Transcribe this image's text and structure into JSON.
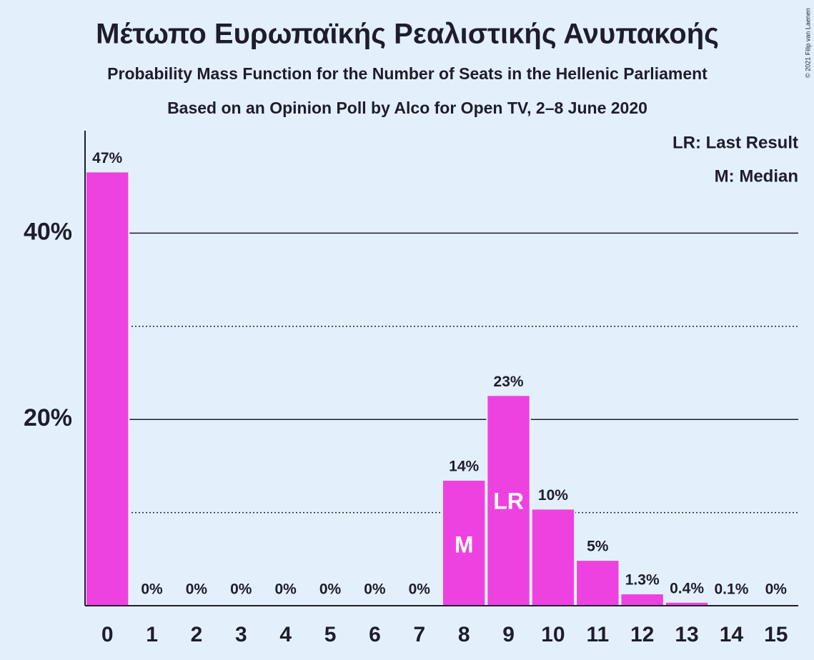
{
  "chart_data": {
    "type": "bar",
    "title": "Μέτωπο Ευρωπαϊκής Ρεαλιστικής Ανυπακοής",
    "subtitles": [
      "Probability Mass Function for the Number of Seats in the Hellenic Parliament",
      "Based on an Opinion Poll by Alco for Open TV, 2–8 June 2020"
    ],
    "categories": [
      "0",
      "1",
      "2",
      "3",
      "4",
      "5",
      "6",
      "7",
      "8",
      "9",
      "10",
      "11",
      "12",
      "13",
      "14",
      "15"
    ],
    "values": [
      46.6,
      0,
      0,
      0,
      0,
      0,
      0,
      0,
      13.5,
      22.6,
      10.4,
      4.9,
      1.3,
      0.4,
      0.1,
      0
    ],
    "value_labels": [
      "47%",
      "0%",
      "0%",
      "0%",
      "0%",
      "0%",
      "0%",
      "0%",
      "14%",
      "23%",
      "10%",
      "5%",
      "1.3%",
      "0.4%",
      "0.1%",
      "0%"
    ],
    "color": "#ee42e0",
    "ylim": [
      0,
      51
    ],
    "yticks": [
      {
        "value": 20,
        "label": "20%"
      },
      {
        "value": 40,
        "label": "40%"
      }
    ],
    "minor_yticks": [
      10,
      30
    ],
    "grid": true,
    "bar_markers": [
      {
        "category": "8",
        "label": "M"
      },
      {
        "category": "9",
        "label": "LR"
      }
    ],
    "legend": [
      "LR: Last Result",
      "M: Median"
    ],
    "copyright": "© 2021 Filip van Laenen"
  }
}
